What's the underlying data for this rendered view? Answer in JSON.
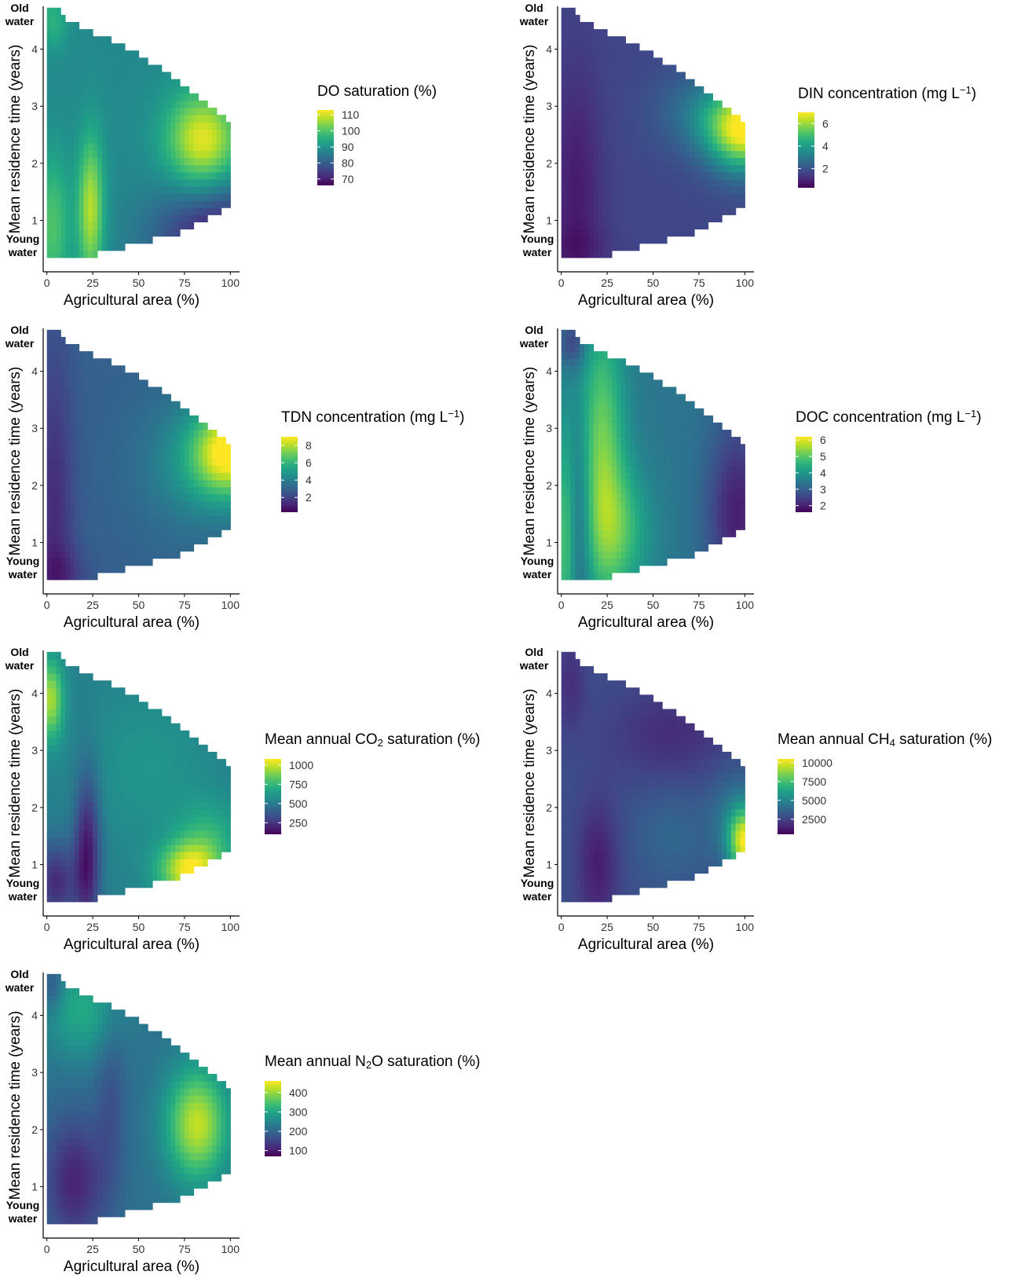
{
  "chart_data": [
    {
      "type": "heatmap",
      "id": "do",
      "title": "DO saturation (%)",
      "title_parts": [
        [
          "DO saturation (%)",
          ""
        ]
      ],
      "xlabel": "Agricultural area (%)",
      "ylabel": "Mean residence time (years)",
      "xlim": [
        -2,
        105
      ],
      "ylim": [
        0.1,
        4.75
      ],
      "xticks": [
        0,
        25,
        50,
        75,
        100
      ],
      "yticks": [
        1,
        2,
        3,
        4
      ],
      "annotations": {
        "top": [
          "Old",
          "water"
        ],
        "bottom": [
          "Young",
          "water"
        ]
      },
      "legend": {
        "ticks": [
          110,
          100,
          90,
          80,
          70
        ],
        "range": [
          66,
          113
        ],
        "position": "right"
      },
      "region": {
        "x_min": 0,
        "x_max": 100,
        "y_min": 0.35,
        "y_max": 4.7,
        "top_edge": [
          [
            6,
            4.7
          ],
          [
            12,
            4.5
          ],
          [
            45,
            4.0
          ],
          [
            70,
            3.5
          ],
          [
            90,
            3.0
          ],
          [
            100,
            2.75
          ]
        ],
        "bottom_edge": [
          [
            0,
            0.35
          ],
          [
            20,
            0.35
          ],
          [
            45,
            0.55
          ],
          [
            75,
            0.8
          ],
          [
            100,
            1.25
          ]
        ]
      },
      "field": {
        "base": 88,
        "features": [
          {
            "x": 85,
            "y": 2.4,
            "sx": 14,
            "sy": 0.6,
            "a": 24
          },
          {
            "x": 24,
            "y": 1.2,
            "sx": 5,
            "sy": 0.9,
            "a": 20
          },
          {
            "x": 3,
            "y": 0.9,
            "sx": 7,
            "sy": 0.9,
            "a": 12
          },
          {
            "x": 3,
            "y": 4.5,
            "sx": 6,
            "sy": 0.35,
            "a": 8
          },
          {
            "x": 95,
            "y": 0.6,
            "sx": 25,
            "sy": 0.75,
            "a": -20
          }
        ]
      }
    },
    {
      "type": "heatmap",
      "id": "din",
      "title": "DIN concentration (mg L-1)",
      "title_parts": [
        [
          "DIN concentration (mg L",
          ""
        ],
        [
          "−1",
          "sup"
        ],
        [
          ")",
          ""
        ]
      ],
      "xlabel": "Agricultural area (%)",
      "ylabel": "Mean residence time (years)",
      "xlim": [
        -2,
        105
      ],
      "ylim": [
        0.1,
        4.75
      ],
      "xticks": [
        0,
        25,
        50,
        75,
        100
      ],
      "yticks": [
        1,
        2,
        3,
        4
      ],
      "annotations": {
        "top": [
          "Old",
          "water"
        ],
        "bottom": [
          "Young",
          "water"
        ]
      },
      "legend": {
        "ticks": [
          6,
          4,
          2
        ],
        "range": [
          0.3,
          7
        ],
        "position": "right"
      },
      "region": {
        "x_min": 0,
        "x_max": 100,
        "y_min": 0.35,
        "y_max": 4.7,
        "top_edge": [
          [
            6,
            4.7
          ],
          [
            12,
            4.5
          ],
          [
            45,
            4.0
          ],
          [
            70,
            3.5
          ],
          [
            90,
            3.0
          ],
          [
            100,
            2.75
          ]
        ],
        "bottom_edge": [
          [
            0,
            0.35
          ],
          [
            20,
            0.35
          ],
          [
            45,
            0.55
          ],
          [
            75,
            0.8
          ],
          [
            100,
            1.25
          ]
        ]
      },
      "field": {
        "base": 1.7,
        "features": [
          {
            "x": 100,
            "y": 2.6,
            "sx": 14,
            "sy": 0.5,
            "a": 5.2
          },
          {
            "x": 78,
            "y": 2.9,
            "sx": 18,
            "sy": 0.5,
            "a": 1.2
          },
          {
            "x": 8,
            "y": 1.5,
            "sx": 10,
            "sy": 1.5,
            "a": -0.9
          },
          {
            "x": 8,
            "y": 0.5,
            "sx": 14,
            "sy": 0.3,
            "a": -0.4
          }
        ]
      }
    },
    {
      "type": "heatmap",
      "id": "tdn",
      "title": "TDN concentration (mg L-1)",
      "title_parts": [
        [
          "TDN concentration (mg L",
          ""
        ],
        [
          "−1",
          "sup"
        ],
        [
          ")",
          ""
        ]
      ],
      "xlabel": "Agricultural area (%)",
      "ylabel": "Mean residence time (years)",
      "xlim": [
        -2,
        105
      ],
      "ylim": [
        0.1,
        4.75
      ],
      "xticks": [
        0,
        25,
        50,
        75,
        100
      ],
      "yticks": [
        1,
        2,
        3,
        4
      ],
      "annotations": {
        "top": [
          "Old",
          "water"
        ],
        "bottom": [
          "Young",
          "water"
        ]
      },
      "legend": {
        "ticks": [
          8,
          6,
          4,
          2
        ],
        "range": [
          0.3,
          9
        ],
        "position": "right"
      },
      "region": {
        "x_min": 0,
        "x_max": 100,
        "y_min": 0.35,
        "y_max": 4.7,
        "top_edge": [
          [
            6,
            4.7
          ],
          [
            12,
            4.5
          ],
          [
            45,
            4.0
          ],
          [
            70,
            3.5
          ],
          [
            90,
            3.0
          ],
          [
            100,
            2.75
          ]
        ],
        "bottom_edge": [
          [
            0,
            0.35
          ],
          [
            20,
            0.35
          ],
          [
            45,
            0.55
          ],
          [
            75,
            0.8
          ],
          [
            100,
            1.25
          ]
        ]
      },
      "field": {
        "base": 3.0,
        "features": [
          {
            "x": 100,
            "y": 2.6,
            "sx": 14,
            "sy": 0.55,
            "a": 5.8
          },
          {
            "x": 80,
            "y": 2.4,
            "sx": 20,
            "sy": 0.8,
            "a": 1.5
          },
          {
            "x": 4,
            "y": 1.4,
            "sx": 8,
            "sy": 2.2,
            "a": -1.6
          },
          {
            "x": 8,
            "y": 0.5,
            "sx": 12,
            "sy": 0.3,
            "a": -0.8
          }
        ]
      }
    },
    {
      "type": "heatmap",
      "id": "doc",
      "title": "DOC concentration (mg L-1)",
      "title_parts": [
        [
          "DOC concentration (mg L",
          ""
        ],
        [
          "−1",
          "sup"
        ],
        [
          ")",
          ""
        ]
      ],
      "xlabel": "Agricultural area (%)",
      "ylabel": "Mean residence time (years)",
      "xlim": [
        -2,
        105
      ],
      "ylim": [
        0.1,
        4.75
      ],
      "xticks": [
        0,
        25,
        50,
        75,
        100
      ],
      "yticks": [
        1,
        2,
        3,
        4
      ],
      "annotations": {
        "top": [
          "Old",
          "water"
        ],
        "bottom": [
          "Young",
          "water"
        ]
      },
      "legend": {
        "ticks": [
          6,
          5,
          4,
          3,
          2
        ],
        "range": [
          1.6,
          6.2
        ],
        "position": "right"
      },
      "region": {
        "x_min": 0,
        "x_max": 100,
        "y_min": 0.35,
        "y_max": 4.7,
        "top_edge": [
          [
            6,
            4.7
          ],
          [
            12,
            4.5
          ],
          [
            45,
            4.0
          ],
          [
            70,
            3.5
          ],
          [
            90,
            3.0
          ],
          [
            100,
            2.75
          ]
        ],
        "bottom_edge": [
          [
            0,
            0.35
          ],
          [
            20,
            0.35
          ],
          [
            45,
            0.55
          ],
          [
            75,
            0.8
          ],
          [
            100,
            1.25
          ]
        ]
      },
      "field": {
        "base": 3.4,
        "features": [
          {
            "x": 22,
            "y": 2.6,
            "sx": 9,
            "sy": 1.7,
            "a": 1.8
          },
          {
            "x": 32,
            "y": 1.2,
            "sx": 12,
            "sy": 0.8,
            "a": 1.2
          },
          {
            "x": 2,
            "y": 1.0,
            "sx": 4,
            "sy": 1.5,
            "a": 1.4
          },
          {
            "x": 10,
            "y": 1.4,
            "sx": 5,
            "sy": 1.2,
            "a": -0.7
          },
          {
            "x": 96,
            "y": 1.5,
            "sx": 12,
            "sy": 1.2,
            "a": -1.4
          },
          {
            "x": 6,
            "y": 4.5,
            "sx": 5,
            "sy": 0.3,
            "a": -1.0
          }
        ]
      }
    },
    {
      "type": "heatmap",
      "id": "co2",
      "title": "Mean annual CO2 saturation (%)",
      "title_parts": [
        [
          "Mean annual CO",
          ""
        ],
        [
          "2",
          "sub"
        ],
        [
          " saturation (%)",
          ""
        ]
      ],
      "xlabel": "Agricultural area (%)",
      "ylabel": "Mean residence time (years)",
      "xlim": [
        -2,
        105
      ],
      "ylim": [
        0.1,
        4.75
      ],
      "xticks": [
        0,
        25,
        50,
        75,
        100
      ],
      "yticks": [
        1,
        2,
        3,
        4
      ],
      "annotations": {
        "top": [
          "Old",
          "water"
        ],
        "bottom": [
          "Young",
          "water"
        ]
      },
      "legend": {
        "ticks": [
          1000,
          750,
          500,
          250
        ],
        "range": [
          100,
          1080
        ],
        "position": "right"
      },
      "region": {
        "x_min": 0,
        "x_max": 100,
        "y_min": 0.35,
        "y_max": 4.7,
        "top_edge": [
          [
            6,
            4.7
          ],
          [
            12,
            4.5
          ],
          [
            45,
            4.0
          ],
          [
            70,
            3.5
          ],
          [
            90,
            3.0
          ],
          [
            100,
            2.75
          ]
        ],
        "bottom_edge": [
          [
            0,
            0.35
          ],
          [
            20,
            0.35
          ],
          [
            45,
            0.55
          ],
          [
            75,
            0.8
          ],
          [
            100,
            1.25
          ]
        ]
      },
      "field": {
        "base": 520,
        "features": [
          {
            "x": 78,
            "y": 0.9,
            "sx": 12,
            "sy": 0.35,
            "a": 520
          },
          {
            "x": 88,
            "y": 1.5,
            "sx": 12,
            "sy": 0.45,
            "a": 180
          },
          {
            "x": 2,
            "y": 3.9,
            "sx": 5,
            "sy": 0.5,
            "a": 430
          },
          {
            "x": 22,
            "y": 1.2,
            "sx": 5,
            "sy": 1.0,
            "a": -370
          },
          {
            "x": 5,
            "y": 0.7,
            "sx": 8,
            "sy": 0.5,
            "a": -300
          },
          {
            "x": 55,
            "y": 2.7,
            "sx": 25,
            "sy": 1.0,
            "a": 90
          }
        ]
      }
    },
    {
      "type": "heatmap",
      "id": "ch4",
      "title": "Mean annual CH4 saturation (%)",
      "title_parts": [
        [
          "Mean annual CH",
          ""
        ],
        [
          "4",
          "sub"
        ],
        [
          " saturation (%)",
          ""
        ]
      ],
      "xlabel": "Agricultural area (%)",
      "ylabel": "Mean residence time (years)",
      "xlim": [
        -2,
        105
      ],
      "ylim": [
        0.1,
        4.75
      ],
      "xticks": [
        0,
        25,
        50,
        75,
        100
      ],
      "yticks": [
        1,
        2,
        3,
        4
      ],
      "annotations": {
        "top": [
          "Old",
          "water"
        ],
        "bottom": [
          "Young",
          "water"
        ]
      },
      "legend": {
        "ticks": [
          10000,
          7500,
          5000,
          2500
        ],
        "range": [
          500,
          10500
        ],
        "position": "right"
      },
      "region": {
        "x_min": 0,
        "x_max": 100,
        "y_min": 0.35,
        "y_max": 4.7,
        "top_edge": [
          [
            6,
            4.7
          ],
          [
            12,
            4.5
          ],
          [
            45,
            4.0
          ],
          [
            70,
            3.5
          ],
          [
            90,
            3.0
          ],
          [
            100,
            2.75
          ]
        ],
        "bottom_edge": [
          [
            0,
            0.35
          ],
          [
            20,
            0.35
          ],
          [
            45,
            0.55
          ],
          [
            75,
            0.8
          ],
          [
            100,
            1.25
          ]
        ]
      },
      "field": {
        "base": 2900,
        "features": [
          {
            "x": 100,
            "y": 1.4,
            "sx": 6,
            "sy": 0.4,
            "a": 6500
          },
          {
            "x": 95,
            "y": 1.8,
            "sx": 10,
            "sy": 0.6,
            "a": 1600
          },
          {
            "x": 60,
            "y": 1.5,
            "sx": 15,
            "sy": 0.6,
            "a": 900
          },
          {
            "x": 20,
            "y": 1.0,
            "sx": 8,
            "sy": 0.8,
            "a": -1600
          },
          {
            "x": 60,
            "y": 3.3,
            "sx": 25,
            "sy": 0.6,
            "a": -1100
          },
          {
            "x": 5,
            "y": 4.2,
            "sx": 6,
            "sy": 0.6,
            "a": -1000
          }
        ]
      }
    },
    {
      "type": "heatmap",
      "id": "n2o",
      "title": "Mean annual N2O saturation (%)",
      "title_parts": [
        [
          "Mean annual N",
          ""
        ],
        [
          "2",
          "sub"
        ],
        [
          "O saturation (%)",
          ""
        ]
      ],
      "xlabel": "Agricultural area (%)",
      "ylabel": "Mean residence time (years)",
      "xlim": [
        -2,
        105
      ],
      "ylim": [
        0.1,
        4.75
      ],
      "xticks": [
        0,
        25,
        50,
        75,
        100
      ],
      "yticks": [
        1,
        2,
        3,
        4
      ],
      "annotations": {
        "top": [
          "Old",
          "water"
        ],
        "bottom": [
          "Young",
          "water"
        ]
      },
      "legend": {
        "ticks": [
          400,
          300,
          200,
          100
        ],
        "range": [
          70,
          460
        ],
        "position": "right"
      },
      "region": {
        "x_min": 0,
        "x_max": 100,
        "y_min": 0.35,
        "y_max": 4.7,
        "top_edge": [
          [
            6,
            4.7
          ],
          [
            12,
            4.5
          ],
          [
            45,
            4.0
          ],
          [
            70,
            3.5
          ],
          [
            90,
            3.0
          ],
          [
            100,
            2.75
          ]
        ],
        "bottom_edge": [
          [
            0,
            0.35
          ],
          [
            20,
            0.35
          ],
          [
            45,
            0.55
          ],
          [
            75,
            0.8
          ],
          [
            100,
            1.25
          ]
        ]
      },
      "field": {
        "base": 215,
        "features": [
          {
            "x": 82,
            "y": 2.1,
            "sx": 12,
            "sy": 0.7,
            "a": 210
          },
          {
            "x": 20,
            "y": 4.1,
            "sx": 15,
            "sy": 0.6,
            "a": 90
          },
          {
            "x": 15,
            "y": 1.1,
            "sx": 12,
            "sy": 0.8,
            "a": -105
          },
          {
            "x": 35,
            "y": 2.6,
            "sx": 6,
            "sy": 1.2,
            "a": -45
          },
          {
            "x": 3,
            "y": 4.5,
            "sx": 4,
            "sy": 0.3,
            "a": -60
          }
        ]
      }
    }
  ]
}
